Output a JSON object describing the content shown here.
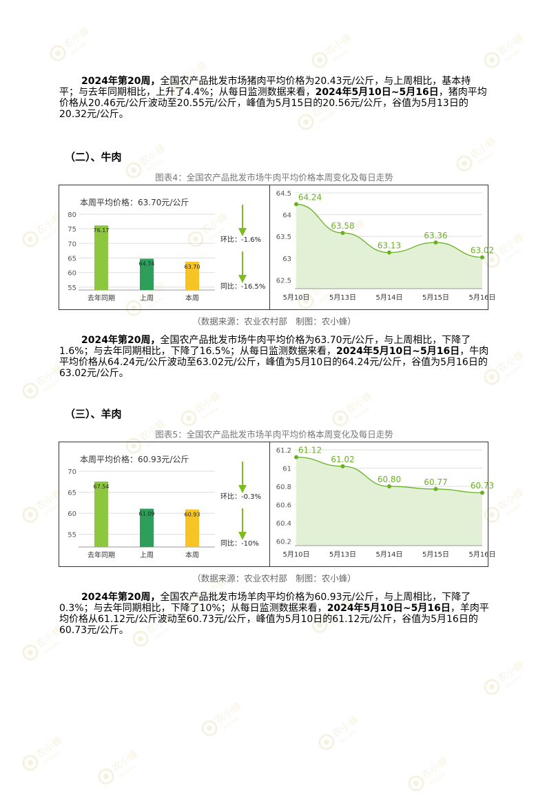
{
  "watermark": {
    "brand": "农小蜂",
    "sub": "BEEDATA",
    "color": "#e8dcae"
  },
  "pork": {
    "paragraph": [
      {
        "t": "2024年第20周，",
        "b": true
      },
      {
        "t": "全国农产品批发市场猪肉平均价格为20.43元/公斤，与上周相比，基本持平；与去年同期相比，上升了4.4%；从每日监测数据来看，",
        "b": false
      },
      {
        "t": "2024年5月10日~5月16日",
        "b": true
      },
      {
        "t": "，猪肉平均价格从20.46元/公斤波动至20.55元/公斤，峰值为5月15日的20.56元/公斤，谷值为5月13日的20.32元/公斤。",
        "b": false
      }
    ]
  },
  "beef": {
    "heading": "（二）、牛肉",
    "caption": "图表4：全国农产品批发市场牛肉平均价格本周变化及每日走势",
    "source": "（数据来源：农业农村部　制图：农小蜂）",
    "paragraph": [
      {
        "t": "2024年第20周，",
        "b": true
      },
      {
        "t": "全国农产品批发市场牛肉平均价格为63.70元/公斤，与上周相比，下降了1.6%；与去年同期相比，下降了16.5%；从每日监测数据来看，",
        "b": false
      },
      {
        "t": "2024年5月10日~5月16日",
        "b": true
      },
      {
        "t": "，牛肉平均价格从64.24元/公斤波动至63.02元/公斤，峰值为5月10日的64.24元/公斤，谷值为5月16日的63.02元/公斤。",
        "b": false
      }
    ]
  },
  "mutton": {
    "heading": "（三）、羊肉",
    "caption": "图表5：全国农产品批发市场羊肉平均价格本周变化及每日走势",
    "source": "（数据来源：农业农村部　制图：农小蜂）",
    "paragraph": [
      {
        "t": "2024年第20周，",
        "b": true
      },
      {
        "t": "全国农产品批发市场羊肉平均价格为60.93元/公斤，与上周相比，下降了0.3%；与去年同期相比，下降了10%；从每日监测数据来看，",
        "b": false
      },
      {
        "t": "2024年5月10日~5月16日",
        "b": true
      },
      {
        "t": "，羊肉平均价格从61.12元/公斤波动至60.73元/公斤，峰值为5月10日的61.12元/公斤，谷值为5月16日的60.73元/公斤。",
        "b": false
      }
    ]
  },
  "chart_data": [
    {
      "type": "bar",
      "title": "本周平均价格：63.70元/公斤",
      "categories": [
        "去年同期",
        "上周",
        "本周"
      ],
      "values": [
        76.17,
        64.74,
        63.7
      ],
      "value_labels": [
        "76.17",
        "64.74",
        "63.70"
      ],
      "colors": [
        "#8dc63f",
        "#2e9e5b",
        "#f7c325"
      ],
      "ylim": [
        54,
        80
      ],
      "yticks": [
        "80",
        "75",
        "70",
        "65",
        "60",
        "55"
      ],
      "changes": [
        {
          "label": "环比：-1.6%"
        },
        {
          "label": "同比：-16.5%"
        }
      ],
      "grid": true
    },
    {
      "type": "area",
      "x": [
        "5月10日",
        "5月13日",
        "5月14日",
        "5月15日",
        "5月16日"
      ],
      "values": [
        64.24,
        63.58,
        63.13,
        63.36,
        63.02
      ],
      "value_labels": [
        "64.24",
        "63.58",
        "63.13",
        "63.36",
        "63.02"
      ],
      "ylim": [
        62.3,
        64.5
      ],
      "yticks": [
        "64.5",
        "64",
        "63.5",
        "63",
        "62.5"
      ],
      "line_color": "#6ab023",
      "fill_color": "#e2f0d5",
      "grid": true
    },
    {
      "type": "bar",
      "title": "本周平均价格：60.93元/公斤",
      "categories": [
        "去年同期",
        "上周",
        "本周"
      ],
      "values": [
        67.54,
        61.09,
        60.93
      ],
      "value_labels": [
        "67.54",
        "61.09",
        "60.93"
      ],
      "colors": [
        "#8dc63f",
        "#2e9e5b",
        "#f7c325"
      ],
      "ylim": [
        52,
        70
      ],
      "yticks": [
        "70",
        "65",
        "60",
        "55"
      ],
      "changes": [
        {
          "label": "环比：-0.3%"
        },
        {
          "label": "同比：-10%"
        }
      ],
      "grid": true
    },
    {
      "type": "area",
      "x": [
        "5月10日",
        "5月13日",
        "5月14日",
        "5月15日",
        "5月16日"
      ],
      "values": [
        61.12,
        61.02,
        60.8,
        60.77,
        60.73
      ],
      "value_labels": [
        "61.12",
        "61.02",
        "60.80",
        "60.77",
        "60.73"
      ],
      "ylim": [
        60.15,
        61.2
      ],
      "yticks": [
        "61.2",
        "61",
        "60.8",
        "60.6",
        "60.4",
        "60.2"
      ],
      "line_color": "#6ab023",
      "fill_color": "#e2f0d5",
      "grid": true
    }
  ]
}
